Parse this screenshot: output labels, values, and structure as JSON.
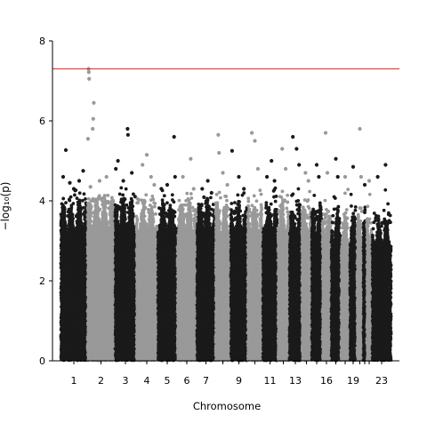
{
  "chart_data": {
    "type": "scatter",
    "subtype": "manhattan",
    "title": "",
    "xlabel": "Chromosome",
    "ylabel": "−log₁₀(p)",
    "ylim": [
      0,
      8
    ],
    "yticks": [
      0,
      2,
      4,
      6,
      8
    ],
    "grid": false,
    "legend": "none",
    "threshold": {
      "value": 7.3,
      "color": "#cc3333"
    },
    "colors": {
      "odd": "#1a1a1a",
      "even": "#999999"
    },
    "chromosomes": [
      {
        "chr": 1,
        "label": "1",
        "bulk": 3.6,
        "tops": [
          [
            0.1,
            4.6
          ],
          [
            0.2,
            5.27
          ],
          [
            0.35,
            4.45
          ],
          [
            0.5,
            4.3
          ],
          [
            0.7,
            4.5
          ],
          [
            0.85,
            4.75
          ]
        ]
      },
      {
        "chr": 2,
        "label": "2",
        "bulk": 3.7,
        "tops": [
          [
            0.03,
            5.55
          ],
          [
            0.05,
            7.3
          ],
          [
            0.06,
            7.22
          ],
          [
            0.07,
            7.05
          ],
          [
            0.12,
            4.35
          ],
          [
            0.2,
            5.8
          ],
          [
            0.22,
            6.05
          ],
          [
            0.24,
            6.45
          ],
          [
            0.45,
            4.5
          ],
          [
            0.7,
            4.6
          ]
        ]
      },
      {
        "chr": 3,
        "label": "3",
        "bulk": 3.7,
        "tops": [
          [
            0.05,
            4.8
          ],
          [
            0.15,
            5.0
          ],
          [
            0.4,
            4.5
          ],
          [
            0.6,
            5.8
          ],
          [
            0.62,
            5.65
          ],
          [
            0.8,
            4.7
          ]
        ]
      },
      {
        "chr": 4,
        "label": "4",
        "bulk": 3.6,
        "tops": [
          [
            0.3,
            4.9
          ],
          [
            0.5,
            5.15
          ],
          [
            0.7,
            4.6
          ],
          [
            0.85,
            4.4
          ]
        ]
      },
      {
        "chr": 5,
        "label": "5",
        "bulk": 3.6,
        "tops": [
          [
            0.2,
            4.3
          ],
          [
            0.5,
            4.4
          ],
          [
            0.85,
            5.6
          ],
          [
            0.9,
            4.6
          ]
        ]
      },
      {
        "chr": 6,
        "label": "6",
        "bulk": 3.6,
        "tops": [
          [
            0.3,
            4.6
          ],
          [
            0.7,
            5.05
          ],
          [
            0.85,
            4.3
          ]
        ]
      },
      {
        "chr": 7,
        "label": "7",
        "bulk": 3.6,
        "tops": [
          [
            0.3,
            4.3
          ],
          [
            0.6,
            4.5
          ],
          [
            0.8,
            4.2
          ]
        ]
      },
      {
        "chr": 8,
        "label": "",
        "bulk": 3.6,
        "tops": [
          [
            0.2,
            5.65
          ],
          [
            0.25,
            5.2
          ],
          [
            0.5,
            4.7
          ],
          [
            0.8,
            4.4
          ]
        ]
      },
      {
        "chr": 9,
        "label": "9",
        "bulk": 3.5,
        "tops": [
          [
            0.1,
            5.25
          ],
          [
            0.5,
            4.6
          ],
          [
            0.8,
            4.3
          ]
        ]
      },
      {
        "chr": 10,
        "label": "",
        "bulk": 3.6,
        "tops": [
          [
            0.3,
            5.7
          ],
          [
            0.5,
            5.5
          ],
          [
            0.7,
            4.8
          ]
        ]
      },
      {
        "chr": 11,
        "label": "11",
        "bulk": 3.6,
        "tops": [
          [
            0.3,
            4.6
          ],
          [
            0.6,
            5.0
          ],
          [
            0.8,
            4.5
          ]
        ]
      },
      {
        "chr": 12,
        "label": "",
        "bulk": 3.6,
        "tops": [
          [
            0.4,
            5.3
          ],
          [
            0.7,
            4.8
          ]
        ]
      },
      {
        "chr": 13,
        "label": "13",
        "bulk": 3.5,
        "tops": [
          [
            0.3,
            5.6
          ],
          [
            0.6,
            5.3
          ],
          [
            0.8,
            4.9
          ]
        ]
      },
      {
        "chr": 14,
        "label": "",
        "bulk": 3.5,
        "tops": [
          [
            0.4,
            4.7
          ],
          [
            0.7,
            4.5
          ]
        ]
      },
      {
        "chr": 15,
        "label": "",
        "bulk": 3.5,
        "tops": [
          [
            0.5,
            4.9
          ],
          [
            0.7,
            4.6
          ]
        ]
      },
      {
        "chr": 16,
        "label": "16",
        "bulk": 3.4,
        "tops": [
          [
            0.4,
            5.7
          ],
          [
            0.6,
            4.7
          ]
        ]
      },
      {
        "chr": 17,
        "label": "",
        "bulk": 3.4,
        "tops": [
          [
            0.5,
            5.05
          ],
          [
            0.7,
            4.6
          ]
        ]
      },
      {
        "chr": 18,
        "label": "",
        "bulk": 3.3,
        "tops": [
          [
            0.5,
            4.6
          ]
        ]
      },
      {
        "chr": 19,
        "label": "19",
        "bulk": 3.3,
        "tops": [
          [
            0.5,
            4.85
          ]
        ]
      },
      {
        "chr": 20,
        "label": "",
        "bulk": 3.3,
        "tops": [
          [
            0.5,
            5.8
          ],
          [
            0.7,
            4.6
          ]
        ]
      },
      {
        "chr": 21,
        "label": "",
        "bulk": 3.1,
        "tops": [
          [
            0.5,
            4.4
          ]
        ]
      },
      {
        "chr": 22,
        "label": "",
        "bulk": 3.2,
        "tops": [
          [
            0.5,
            4.5
          ]
        ]
      },
      {
        "chr": 23,
        "label": "23",
        "bulk": 3.2,
        "tops": [
          [
            0.3,
            4.6
          ],
          [
            0.7,
            4.9
          ]
        ]
      }
    ]
  }
}
